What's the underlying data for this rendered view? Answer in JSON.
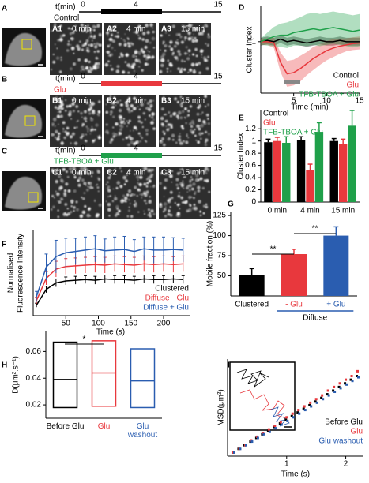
{
  "panel_letters": [
    "A",
    "B",
    "C",
    "D",
    "E",
    "F",
    "G",
    "H",
    "I"
  ],
  "time_axis": {
    "label": "t(min)",
    "ticks": [
      0,
      4,
      15
    ]
  },
  "image_rows": [
    {
      "condition": "Control",
      "color": "#000000",
      "frames": [
        {
          "id": "A1",
          "time": "0 min"
        },
        {
          "id": "A2",
          "time": "4 min"
        },
        {
          "id": "A3",
          "time": "15 min"
        }
      ]
    },
    {
      "condition": "Glu",
      "color": "#e8383d",
      "frames": [
        {
          "id": "B1",
          "time": "0 min"
        },
        {
          "id": "B2",
          "time": "4 min"
        },
        {
          "id": "B3",
          "time": "15 min"
        }
      ]
    },
    {
      "condition": "TFB-TBOA + Glu",
      "color": "#1fa04a",
      "frames": [
        {
          "id": "C1",
          "time": "0 min"
        },
        {
          "id": "C2",
          "time": "4 min"
        },
        {
          "id": "C3",
          "time": "15 min"
        }
      ]
    }
  ],
  "chart_data": [
    {
      "type": "line",
      "error_style": "band",
      "xlabel": "Time (min)",
      "ylabel": "Cluster Index",
      "legend": "lower right",
      "x": [
        0,
        1,
        2,
        3,
        4,
        5,
        6,
        7,
        8,
        9,
        10,
        11,
        12,
        13,
        14,
        15
      ],
      "xlim": [
        0,
        15
      ],
      "xticks": [
        5,
        10,
        15
      ],
      "ylim": [
        0.2,
        1.55
      ],
      "yticks": [
        1
      ],
      "highlight": [
        3.5,
        6
      ],
      "highlight_color": "#888888",
      "series": [
        {
          "name": "Control",
          "color": "#000000",
          "values": [
            1,
            1.02,
            1,
            1.04,
            1,
            1.02,
            1,
            0.98,
            1,
            1.02,
            1,
            1,
            1.02,
            1,
            1,
            1
          ],
          "errors": [
            0.06,
            0.06,
            0.06,
            0.06,
            0.06,
            0.06,
            0.06,
            0.06,
            0.06,
            0.06,
            0.06,
            0.06,
            0.06,
            0.06,
            0.06,
            0.06
          ]
        },
        {
          "name": "Glu",
          "color": "#e8383d",
          "values": [
            1,
            1,
            0.98,
            0.68,
            0.5,
            0.52,
            0.58,
            0.66,
            0.74,
            0.8,
            0.86,
            0.9,
            0.93,
            0.95,
            0.97,
            0.98
          ],
          "errors": [
            0.05,
            0.05,
            0.08,
            0.15,
            0.2,
            0.2,
            0.2,
            0.18,
            0.18,
            0.16,
            0.15,
            0.14,
            0.12,
            0.1,
            0.1,
            0.1
          ]
        },
        {
          "name": "TFB-TBOA + Glu",
          "color": "#1fa04a",
          "values": [
            1,
            1.04,
            1.08,
            1.1,
            1.1,
            1.14,
            1.16,
            1.18,
            1.2,
            1.18,
            1.2,
            1.22,
            1.2,
            1.18,
            1.16,
            1.18
          ],
          "errors": [
            0.05,
            0.1,
            0.15,
            0.18,
            0.2,
            0.2,
            0.22,
            0.25,
            0.25,
            0.25,
            0.25,
            0.25,
            0.25,
            0.25,
            0.25,
            0.25
          ]
        }
      ]
    },
    {
      "type": "bar",
      "ylabel": "Cluster Index",
      "legend": "upper left",
      "categories": [
        "0 min",
        "4 min",
        "15 min"
      ],
      "ylim": [
        0,
        1.5
      ],
      "yticks": [
        0,
        0.2,
        0.4,
        0.6,
        0.8,
        1,
        1.2
      ],
      "annotations": [
        {
          "text": "*"
        }
      ],
      "series": [
        {
          "name": "Control",
          "color": "#000000",
          "values": [
            0.98,
            1.02,
            1.0
          ],
          "errors": [
            0.05,
            0.05,
            0.04
          ]
        },
        {
          "name": "Glu",
          "color": "#e8383d",
          "values": [
            1.0,
            0.52,
            0.95
          ],
          "errors": [
            0.06,
            0.1,
            0.08
          ]
        },
        {
          "name": "TFB-TBOA + Glu",
          "color": "#1fa04a",
          "values": [
            0.97,
            1.15,
            1.25
          ],
          "errors": [
            0.1,
            0.15,
            0.25
          ]
        }
      ]
    },
    {
      "type": "line",
      "error_style": "bars",
      "xlabel": "Time (s)",
      "ylabel": [
        "Normalised",
        "Fluorescence Intensity"
      ],
      "legend": "lower right",
      "x": [
        5,
        20,
        35,
        50,
        65,
        80,
        95,
        110,
        125,
        140,
        155,
        170,
        185,
        200,
        215,
        230
      ],
      "xlim": [
        0,
        240
      ],
      "xticks": [
        50,
        100,
        150,
        200
      ],
      "ylim": [
        0,
        1.3
      ],
      "series": [
        {
          "name": "Clustered",
          "color": "#000000",
          "values": [
            0.16,
            0.4,
            0.5,
            0.53,
            0.54,
            0.55,
            0.54,
            0.56,
            0.55,
            0.55,
            0.54,
            0.56,
            0.55,
            0.55,
            0.56,
            0.55
          ],
          "errors": [
            0.03,
            0.05,
            0.06,
            0.06,
            0.06,
            0.06,
            0.06,
            0.06,
            0.06,
            0.06,
            0.06,
            0.06,
            0.06,
            0.06,
            0.06,
            0.06
          ]
        },
        {
          "name": "Diffuse - Glu",
          "color": "#e8383d",
          "values": [
            0.23,
            0.57,
            0.71,
            0.75,
            0.76,
            0.77,
            0.78,
            0.77,
            0.79,
            0.78,
            0.77,
            0.79,
            0.78,
            0.79,
            0.78,
            0.79
          ],
          "errors": [
            0.05,
            0.1,
            0.12,
            0.12,
            0.12,
            0.12,
            0.12,
            0.12,
            0.12,
            0.12,
            0.12,
            0.12,
            0.12,
            0.12,
            0.12,
            0.12
          ]
        },
        {
          "name": "Diffuse + Glu",
          "color": "#2a5db0",
          "values": [
            0.29,
            0.74,
            0.9,
            0.96,
            0.98,
            1.0,
            1.02,
            0.99,
            1.0,
            1.01,
            0.98,
            1.02,
            1.0,
            1.0,
            1.01,
            1.0
          ],
          "errors": [
            0.08,
            0.2,
            0.25,
            0.22,
            0.2,
            0.2,
            0.2,
            0.18,
            0.2,
            0.2,
            0.18,
            0.18,
            0.2,
            0.2,
            0.18,
            0.18
          ]
        }
      ]
    },
    {
      "type": "bar",
      "ylabel": "Mobile fraction (%)",
      "group_label": "Diffuse",
      "categories": [
        "Clustered",
        "- Glu",
        "+ Glu"
      ],
      "colors": [
        "#000000",
        "#e8383d",
        "#2a5db0"
      ],
      "values": [
        51,
        77,
        100
      ],
      "errors": [
        8,
        6,
        11
      ],
      "ylim": [
        25,
        130
      ],
      "yticks": [
        50,
        75,
        100,
        125
      ],
      "annotations": [
        {
          "text": "**"
        },
        {
          "text": "**"
        }
      ]
    },
    {
      "type": "box",
      "ylabel": "D(μm².s⁻¹)",
      "categories": [
        "Before Glu",
        "Glu",
        "Glu washout"
      ],
      "colors": [
        "#000000",
        "#e8383d",
        "#2a5db0"
      ],
      "q1": [
        0.018,
        0.019,
        0.018
      ],
      "median": [
        0.039,
        0.044,
        0.038
      ],
      "q3": [
        0.067,
        0.068,
        0.062
      ],
      "ylim": [
        0.01,
        0.075
      ],
      "yticks": [
        0.02,
        0.04,
        0.06
      ],
      "annotations": [
        {
          "text": "*"
        }
      ]
    },
    {
      "type": "scatter",
      "xlabel": "Time (s)",
      "ylabel": "MSD(μm²)",
      "legend": "lower right",
      "x": [
        0.1,
        0.2,
        0.3,
        0.4,
        0.5,
        0.6,
        0.7,
        0.8,
        0.9,
        1.0,
        1.1,
        1.2,
        1.3,
        1.4,
        1.5,
        1.6,
        1.7,
        1.8,
        1.9,
        2.0,
        2.1,
        2.2
      ],
      "xlim": [
        0,
        2.3
      ],
      "xticks": [
        1,
        2
      ],
      "ylim": [
        0,
        0.8
      ],
      "series": [
        {
          "name": "Before Glu",
          "color": "#000000",
          "values": [
            0.03,
            0.06,
            0.09,
            0.12,
            0.15,
            0.18,
            0.21,
            0.24,
            0.27,
            0.3,
            0.33,
            0.36,
            0.39,
            0.42,
            0.45,
            0.48,
            0.51,
            0.54,
            0.57,
            0.6,
            0.63,
            0.66
          ]
        },
        {
          "name": "Glu",
          "color": "#e8383d",
          "values": [
            0.03,
            0.06,
            0.09,
            0.13,
            0.16,
            0.19,
            0.22,
            0.25,
            0.28,
            0.32,
            0.35,
            0.38,
            0.41,
            0.44,
            0.47,
            0.5,
            0.54,
            0.57,
            0.6,
            0.63,
            0.66,
            0.7
          ]
        },
        {
          "name": "Glu washout",
          "color": "#2a5db0",
          "values": [
            0.03,
            0.06,
            0.09,
            0.12,
            0.15,
            0.18,
            0.2,
            0.23,
            0.26,
            0.29,
            0.32,
            0.35,
            0.38,
            0.41,
            0.44,
            0.47,
            0.5,
            0.53,
            0.56,
            0.59,
            0.62,
            0.65
          ]
        }
      ]
    }
  ]
}
